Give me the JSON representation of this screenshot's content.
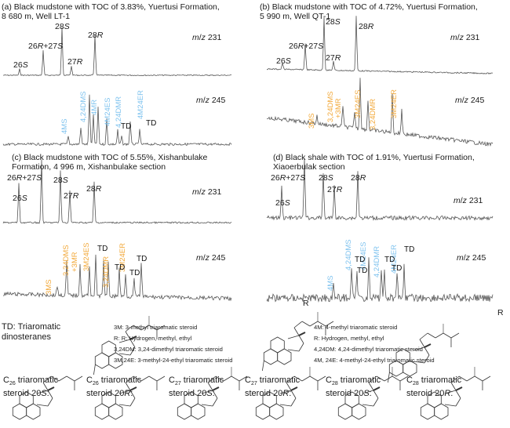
{
  "figure": {
    "panels": [
      {
        "id": "a",
        "title_line1": "(a) Black mudstone with TOC of 3.83%, Yuertusi Formation,",
        "title_line2": "8 680 m, Well LT-1",
        "mz231_label": "m/z 231",
        "mz245_label": "m/z 245",
        "mz231_peaks": [
          "26S",
          "26R+27S",
          "28S",
          "27R",
          "28R"
        ],
        "mz245_labels": [
          "4MS",
          "4,24DMS",
          "4MR",
          "4M24ES",
          "4,24DMR",
          "4M24ER"
        ],
        "mz245_label_color": "#7fc3ef",
        "td_labels": [
          "TD",
          "TD"
        ]
      },
      {
        "id": "b",
        "title_line1": "(b) Black mudstone with TOC of 4.72%, Yuertusi Formation,",
        "title_line2": "5 990 m, Well QT-1",
        "mz231_label": "m/z 231",
        "mz245_label": "m/z 245",
        "mz231_peaks": [
          "26S",
          "26R+27S",
          "28S",
          "27R",
          "28R"
        ],
        "mz245_labels": [
          "3MS",
          "3,24DMS",
          "+3MR",
          "3M24ES",
          "3,24DMR",
          "3M24ER"
        ],
        "mz245_label_color": "#f2a93b",
        "td_labels": []
      },
      {
        "id": "c",
        "title_line1": "(c) Black mudstone with TOC of 5.55%, Xishanbulake",
        "title_line2": "Formation, 4 996 m, Xishanbulake section",
        "mz231_label": "m/z 231",
        "mz245_label": "m/z 245",
        "mz231_peaks": [
          "26S",
          "26R+27S",
          "28S",
          "27R",
          "28R"
        ],
        "mz245_labels": [
          "3MS",
          "3,24DMS",
          "+3MR",
          "3M24ES",
          "3,24DMR",
          "3M24ER"
        ],
        "mz245_label_color": "#f2a93b",
        "td_labels": [
          "TD",
          "TD",
          "TD",
          "TD"
        ]
      },
      {
        "id": "d",
        "title_line1": "(d) Black shale with TOC of 1.91%, Yuertusi Formation,",
        "title_line2": "Xiaoerbulak section",
        "mz231_label": "m/z 231",
        "mz245_label": "m/z 245",
        "mz231_peaks": [
          "26S",
          "26R+27S",
          "28S",
          "27R",
          "28R"
        ],
        "mz245_labels": [
          "4MS",
          "4,24DMS",
          "4M24ES",
          "4,24DMR",
          "4M24ER"
        ],
        "mz245_label_color": "#7fc3ef",
        "td_labels": [
          "TD",
          "TD",
          "TD",
          "TD",
          "TD"
        ]
      }
    ],
    "legend": {
      "td_line1": "TD: Triaromatic",
      "td_line2": "dinosteranes",
      "left_defs": [
        "3M: 3-methyl triaromatic steroid",
        "R: R: Hydrogen, methyl, ethyl",
        "3,24DM: 3,24-dimethyl triaromatic steroid",
        "3M,24E: 3-methyl-24-ethyl triaromatic steroid"
      ],
      "right_defs": [
        "4M: 4-methyl triaromatic steroid",
        "R: Hydrogen, methyl, ethyl",
        "4,24DM: 4,24-dimethyl triaromatic steroid",
        "4M, 24E: 4-methyl-24-ethyl triaromatic steroid"
      ],
      "r_label": "R"
    },
    "structures": [
      {
        "carbon": "26",
        "line2": "steroid 20",
        "config": "S"
      },
      {
        "carbon": "26",
        "line2": "steroid 20",
        "config": "R"
      },
      {
        "carbon": "27",
        "line2": "steroid 20",
        "config": "S"
      },
      {
        "carbon": "27",
        "line2": "steroid 20",
        "config": "R"
      },
      {
        "carbon": "28",
        "line2": "steroid 20",
        "config": "S"
      },
      {
        "carbon": "28",
        "line2": "steroid 20",
        "config": "R"
      }
    ],
    "structure_prefix": "C",
    "structure_suffix": " triaromatic"
  }
}
